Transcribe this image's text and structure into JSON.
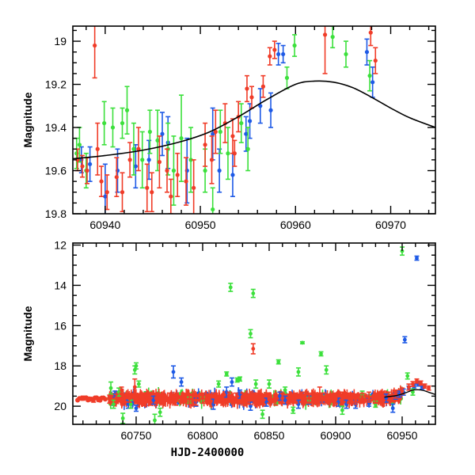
{
  "chart_data": [
    {
      "panel": "top",
      "type": "scatter",
      "title": "",
      "xlabel": "",
      "ylabel": "Magnitude",
      "xlim": [
        60936.6,
        60974.7
      ],
      "ylim": [
        19.8,
        18.93
      ],
      "y_inverted": true,
      "x_ticks": [
        60940,
        60950,
        60960,
        60970
      ],
      "x_tick_labels": [
        "60940",
        "60950",
        "60960",
        "60970"
      ],
      "y_ticks": [
        19.0,
        19.2,
        19.4,
        19.6,
        19.8
      ],
      "y_tick_labels": [
        "19",
        "19.2",
        "19.4",
        "19.6",
        "19.8"
      ],
      "grid": false,
      "model_curve": {
        "name": "model",
        "color": "#000000",
        "x": [
          60936.6,
          60940,
          60944,
          60948,
          60951,
          60954,
          60957,
          60960,
          60962,
          60964,
          60966,
          60968,
          60970,
          60972,
          60974.7
        ],
        "y": [
          19.545,
          19.53,
          19.505,
          19.465,
          19.42,
          19.35,
          19.27,
          19.2,
          19.185,
          19.19,
          19.215,
          19.26,
          19.31,
          19.355,
          19.4
        ]
      },
      "series": [
        {
          "name": "red",
          "color": "#f03c28",
          "x": [
            60937.1,
            60937.6,
            60938.1,
            60938.9,
            60939.2,
            60939.6,
            60940.2,
            60941.2,
            60941.8,
            60942.6,
            60943.5,
            60944.4,
            60944.9,
            60945.7,
            60946.5,
            60946.9,
            60947.6,
            60948.5,
            60949.3,
            60950.5,
            60951.2,
            60951.6,
            60952.6,
            60953.4,
            60953.6,
            60954.0,
            60954.9,
            60955.4,
            60956.6,
            60957.3,
            60957.8,
            60963.1,
            60967.9,
            60968.4
          ],
          "y": [
            19.55,
            19.58,
            19.6,
            19.02,
            19.5,
            19.65,
            19.7,
            19.63,
            19.7,
            19.55,
            19.5,
            19.68,
            19.7,
            19.56,
            19.6,
            19.72,
            19.62,
            19.65,
            19.68,
            19.48,
            19.55,
            19.42,
            19.38,
            19.44,
            19.52,
            19.35,
            19.22,
            19.26,
            19.21,
            19.07,
            19.04,
            18.97,
            18.96,
            19.09
          ],
          "err": [
            0.05,
            0.05,
            0.06,
            0.15,
            0.12,
            0.07,
            0.08,
            0.09,
            0.09,
            0.08,
            0.1,
            0.11,
            0.09,
            0.12,
            0.1,
            0.08,
            0.1,
            0.11,
            0.13,
            0.1,
            0.11,
            0.1,
            0.09,
            0.08,
            0.06,
            0.07,
            0.06,
            0.05,
            0.05,
            0.04,
            0.04,
            0.18,
            0.06,
            0.06
          ]
        },
        {
          "name": "green",
          "color": "#3ce03c",
          "x": [
            60937.0,
            60937.3,
            60938.0,
            60939.9,
            60940.8,
            60941.8,
            60942.3,
            60943.0,
            60943.9,
            60944.7,
            60945.5,
            60946.6,
            60947.2,
            60948.0,
            60949.0,
            60950.5,
            60951.3,
            60952.1,
            60952.9,
            60954.3,
            60955.0,
            60959.1,
            60959.9,
            60963.9,
            60965.3,
            60967.8
          ],
          "y": [
            19.52,
            19.48,
            19.6,
            19.38,
            19.4,
            19.38,
            19.32,
            19.5,
            19.55,
            19.42,
            19.46,
            19.5,
            19.6,
            19.45,
            19.55,
            19.6,
            19.78,
            19.42,
            19.52,
            19.38,
            19.5,
            19.17,
            19.02,
            18.98,
            19.06,
            19.16
          ],
          "err": [
            0.07,
            0.08,
            0.08,
            0.1,
            0.09,
            0.07,
            0.11,
            0.12,
            0.13,
            0.1,
            0.14,
            0.12,
            0.16,
            0.2,
            0.15,
            0.1,
            0.1,
            0.1,
            0.12,
            0.09,
            0.1,
            0.05,
            0.05,
            0.05,
            0.06,
            0.07
          ]
        },
        {
          "name": "blue",
          "color": "#1e5ae6",
          "x": [
            60937.5,
            60938.4,
            60940.0,
            60941.3,
            60943.2,
            60944.6,
            60946.0,
            60946.6,
            60948.6,
            60951.3,
            60952.0,
            60953.4,
            60954.8,
            60955.2,
            60956.3,
            60957.4,
            60958.2,
            60958.7,
            60967.5,
            60968.1
          ],
          "y": [
            19.55,
            19.57,
            19.72,
            19.6,
            19.58,
            19.55,
            19.43,
            19.47,
            19.6,
            19.43,
            19.6,
            19.62,
            19.43,
            19.37,
            19.3,
            19.32,
            19.06,
            19.06,
            19.05,
            19.19
          ],
          "err": [
            0.06,
            0.08,
            0.15,
            0.1,
            0.1,
            0.09,
            0.1,
            0.12,
            0.15,
            0.12,
            0.1,
            0.1,
            0.08,
            0.08,
            0.08,
            0.08,
            0.05,
            0.04,
            0.06,
            0.07
          ]
        }
      ]
    },
    {
      "panel": "bottom",
      "type": "scatter",
      "title": "",
      "xlabel": "HJD-2400000",
      "ylabel": "Magnitude",
      "xlim": [
        60702.4,
        60975.0
      ],
      "ylim": [
        20.9,
        11.9
      ],
      "y_inverted": true,
      "x_ticks": [
        60750,
        60800,
        60850,
        60900,
        60950
      ],
      "x_tick_labels": [
        "60750",
        "60800",
        "60850",
        "60900",
        "60950"
      ],
      "y_ticks": [
        12,
        14,
        16,
        18,
        20
      ],
      "y_tick_labels": [
        "12",
        "14",
        "16",
        "18",
        "20"
      ],
      "grid": false,
      "model_curve": {
        "name": "model",
        "color": "#000000",
        "x": [
          60936.6,
          60945,
          60952,
          60958,
          60962,
          60966,
          60970,
          60975
        ],
        "y": [
          19.55,
          19.48,
          19.35,
          19.2,
          19.185,
          19.22,
          19.31,
          19.42
        ]
      },
      "series": [
        {
          "name": "red",
          "color": "#f03c28",
          "x": [
            60710,
            60714,
            60718,
            60722,
            60730,
            60735,
            60740,
            60745,
            60750,
            60755,
            60760,
            60765,
            60770,
            60775,
            60780,
            60785,
            60790,
            60795,
            60800,
            60805,
            60810,
            60815,
            60820,
            60825,
            60830,
            60835,
            60840,
            60845,
            60850,
            60855,
            60860,
            60865,
            60870,
            60875,
            60880,
            60885,
            60888,
            60890,
            60895,
            60900,
            60905,
            60910,
            60915,
            60920,
            60925,
            60930,
            60935,
            60940,
            60945,
            60950,
            60955,
            60958,
            60961,
            60964,
            60967,
            60970,
            60739,
            60749,
            60838
          ],
          "y": [
            19.6,
            19.65,
            19.7,
            19.65,
            19.65,
            19.6,
            19.75,
            19.6,
            19.62,
            19.65,
            19.7,
            19.6,
            19.65,
            19.6,
            19.7,
            19.6,
            19.65,
            19.7,
            19.6,
            19.65,
            19.6,
            19.7,
            19.55,
            19.6,
            19.6,
            19.65,
            19.6,
            19.65,
            19.6,
            19.7,
            19.6,
            19.65,
            19.6,
            19.55,
            19.6,
            19.65,
            19.4,
            19.6,
            19.65,
            19.6,
            19.55,
            19.6,
            19.65,
            19.6,
            19.55,
            19.6,
            19.55,
            19.5,
            19.4,
            19.25,
            19.05,
            18.9,
            18.75,
            18.85,
            19.0,
            19.1,
            19.2,
            19.05,
            17.15
          ],
          "err": [
            0.1,
            0.1,
            0.1,
            0.1,
            0.2,
            0.2,
            0.2,
            0.2,
            0.25,
            0.25,
            0.25,
            0.25,
            0.25,
            0.25,
            0.25,
            0.25,
            0.25,
            0.25,
            0.25,
            0.25,
            0.25,
            0.25,
            0.25,
            0.25,
            0.25,
            0.25,
            0.25,
            0.25,
            0.25,
            0.25,
            0.25,
            0.25,
            0.25,
            0.25,
            0.25,
            0.25,
            0.35,
            0.25,
            0.25,
            0.25,
            0.25,
            0.25,
            0.25,
            0.25,
            0.25,
            0.25,
            0.25,
            0.2,
            0.2,
            0.15,
            0.15,
            0.12,
            0.1,
            0.1,
            0.1,
            0.1,
            0.15,
            0.4,
            0.25
          ]
        },
        {
          "name": "green",
          "color": "#3ce03c",
          "x": [
            60731,
            60733,
            60737,
            60740,
            60746,
            60749,
            60750,
            60752,
            60764,
            60768,
            60790,
            60800,
            60812,
            60818,
            60821,
            60826,
            60828,
            60836,
            60838,
            60840,
            60845,
            60850,
            60857,
            60862,
            60868,
            60872,
            60875,
            60880,
            60889,
            60893,
            60905,
            60920,
            60930,
            60950,
            60954,
            60958
          ],
          "y": [
            19.1,
            19.9,
            19.3,
            20.6,
            19.9,
            18.2,
            18.0,
            18.9,
            20.7,
            20.3,
            19.7,
            19.7,
            18.9,
            18.4,
            14.1,
            18.7,
            18.65,
            16.4,
            14.4,
            18.9,
            20.4,
            18.9,
            17.8,
            19.2,
            20.2,
            18.3,
            16.85,
            19.7,
            17.4,
            18.2,
            20.2,
            19.4,
            19.9,
            12.3,
            18.5,
            19.3
          ],
          "err": [
            0.3,
            0.2,
            0.2,
            0.25,
            0.2,
            0.2,
            0.15,
            0.15,
            0.3,
            0.2,
            0.15,
            0.15,
            0.15,
            0.1,
            0.2,
            0.1,
            0.1,
            0.2,
            0.2,
            0.2,
            0.2,
            0.2,
            0.1,
            0.15,
            0.15,
            0.2,
            0.05,
            0.15,
            0.1,
            0.2,
            0.2,
            0.15,
            0.15,
            0.2,
            0.15,
            0.15
          ]
        },
        {
          "name": "blue",
          "color": "#1e5ae6",
          "x": [
            60734,
            60744,
            60750,
            60763,
            60778,
            60784,
            60795,
            60808,
            60818,
            60822,
            60828,
            60836,
            60848,
            60858,
            60862,
            60872,
            60880,
            60890,
            60902,
            60915,
            60925,
            60938,
            60943,
            60945,
            60948,
            60951,
            60955,
            60959,
            60962,
            60965,
            60952,
            60961,
            60908
          ],
          "y": [
            19.4,
            19.9,
            20.1,
            19.7,
            18.3,
            18.8,
            19.8,
            19.9,
            19.3,
            18.8,
            19.4,
            20.0,
            19.8,
            19.5,
            19.7,
            19.9,
            19.7,
            19.6,
            19.8,
            19.9,
            19.8,
            19.6,
            20.1,
            19.5,
            19.4,
            19.3,
            19.1,
            19.0,
            18.9,
            19.05,
            16.7,
            12.65,
            19.9
          ],
          "err": [
            0.15,
            0.2,
            0.15,
            0.2,
            0.3,
            0.2,
            0.2,
            0.25,
            0.25,
            0.2,
            0.2,
            0.2,
            0.2,
            0.2,
            0.2,
            0.2,
            0.2,
            0.2,
            0.2,
            0.2,
            0.2,
            0.2,
            0.2,
            0.15,
            0.15,
            0.15,
            0.1,
            0.1,
            0.1,
            0.1,
            0.15,
            0.1,
            0.2
          ]
        }
      ],
      "dense_band": {
        "description": "dense cluster of red/blue/green points around magnitude 19.6",
        "x_range": [
          60730,
          60950
        ],
        "center_mag": 19.62,
        "scatter_mag": 0.18
      }
    }
  ]
}
